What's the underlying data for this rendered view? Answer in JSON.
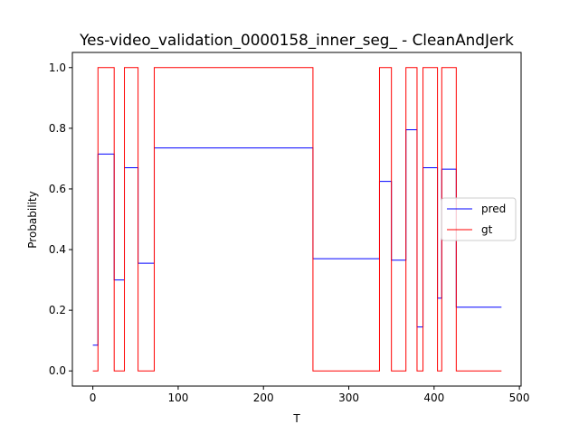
{
  "chart_data": {
    "type": "line",
    "title": "Yes-video_validation_0000158_inner_seg_ - CleanAndJerk",
    "xlabel": "T",
    "ylabel": "Probability",
    "xlim": [
      -24,
      502
    ],
    "ylim": [
      -0.05,
      1.05
    ],
    "xticks": [
      0,
      100,
      200,
      300,
      400,
      500
    ],
    "yticks": [
      0.0,
      0.2,
      0.4,
      0.6,
      0.8,
      1.0
    ],
    "xtick_labels": [
      "0",
      "100",
      "200",
      "300",
      "400",
      "500"
    ],
    "ytick_labels": [
      "0.0",
      "0.2",
      "0.4",
      "0.6",
      "0.8",
      "1.0"
    ],
    "grid": false,
    "legend_position": "center-right",
    "series": [
      {
        "name": "pred",
        "color": "#0000ff",
        "step": true,
        "x": [
          0,
          6,
          25,
          37,
          53,
          72,
          258,
          336,
          350,
          367,
          380,
          387,
          404,
          409,
          426,
          479
        ],
        "values": [
          0.085,
          0.715,
          0.3,
          0.67,
          0.355,
          0.735,
          0.37,
          0.625,
          0.365,
          0.795,
          0.145,
          0.67,
          0.24,
          0.665,
          0.21,
          0.21
        ]
      },
      {
        "name": "gt",
        "color": "#ff0000",
        "step": true,
        "x": [
          0,
          6,
          25,
          37,
          53,
          72,
          258,
          336,
          350,
          367,
          380,
          387,
          404,
          409,
          426,
          479
        ],
        "values": [
          0,
          1,
          0,
          1,
          0,
          1,
          0,
          1,
          0,
          1,
          0,
          1,
          0,
          1,
          0,
          0
        ]
      }
    ]
  }
}
